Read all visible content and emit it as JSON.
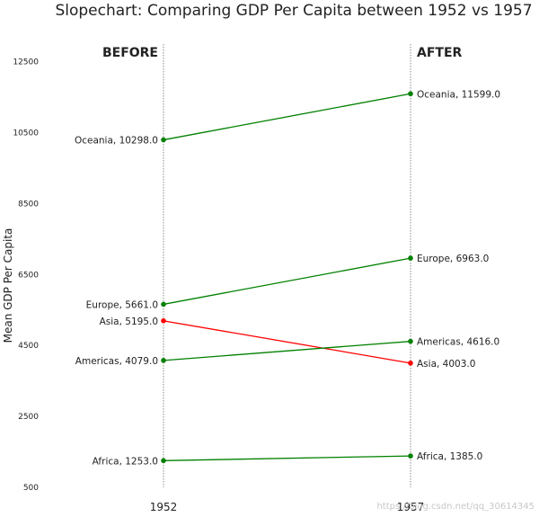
{
  "chart_data": {
    "type": "line",
    "title": "Slopechart: Comparing GDP Per Capita between 1952 vs 1957",
    "ylabel": "Mean GDP Per Capita",
    "xlabel": "",
    "x": [
      "1952",
      "1957"
    ],
    "headers": {
      "left": "BEFORE",
      "right": "AFTER"
    },
    "ylim": [
      500,
      13000
    ],
    "yticks": [
      500,
      2500,
      4500,
      6500,
      8500,
      10500,
      12500
    ],
    "grid": false,
    "series": [
      {
        "name": "Oceania",
        "values": [
          10298.0,
          11599.0
        ],
        "color": "#008000"
      },
      {
        "name": "Europe",
        "values": [
          5661.0,
          6963.0
        ],
        "color": "#008000"
      },
      {
        "name": "Asia",
        "values": [
          5195.0,
          4003.0
        ],
        "color": "#ff0000"
      },
      {
        "name": "Americas",
        "values": [
          4079.0,
          4616.0
        ],
        "color": "#008000"
      },
      {
        "name": "Africa",
        "values": [
          1253.0,
          1385.0
        ],
        "color": "#008000"
      }
    ]
  },
  "watermark": "https://blog.csdn.net/qq_30614345"
}
